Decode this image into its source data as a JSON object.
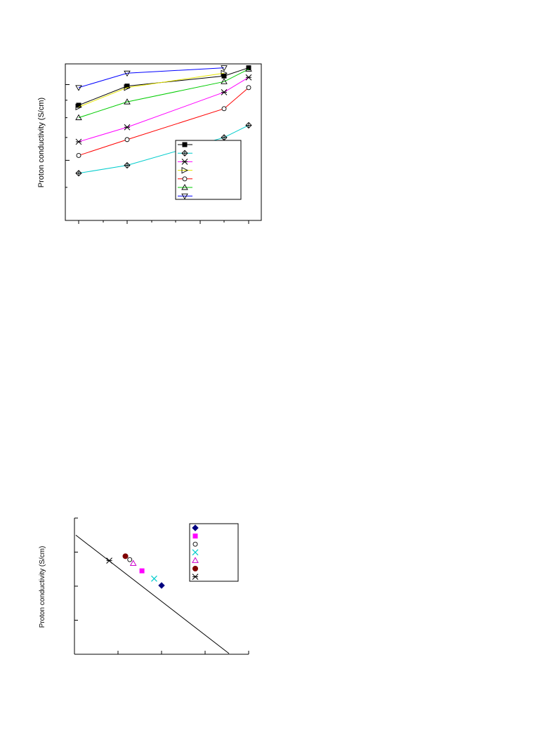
{
  "chart_data": [
    {
      "type": "line",
      "ylabel": "Proton conductivity (S/cm)",
      "xlabel": "",
      "title": "",
      "y_scale": "log",
      "ylim": [
        0.4,
        1.15
      ],
      "grid": false,
      "legend_placement": "lower-right",
      "x": [
        1,
        2,
        3,
        4,
        5
      ],
      "series": [
        {
          "color": "#000000",
          "marker": "filled-square",
          "values": [
            0.87,
            0.99,
            null,
            1.06,
            1.12
          ]
        },
        {
          "color": "#00cccc",
          "marker": "crossed-diamond",
          "values": [
            0.55,
            0.58,
            null,
            0.7,
            0.76
          ]
        },
        {
          "color": "#ff00ff",
          "marker": "asterisk",
          "values": [
            0.68,
            0.75,
            null,
            0.95,
            1.05
          ]
        },
        {
          "color": "#e6e600",
          "marker": "right-triangle",
          "values": [
            0.86,
            0.98,
            null,
            1.08,
            null
          ]
        },
        {
          "color": "#ff0000",
          "marker": "open-circle",
          "values": [
            0.62,
            0.69,
            null,
            0.85,
            0.98
          ]
        },
        {
          "color": "#00cc00",
          "marker": "up-triangle",
          "values": [
            0.8,
            0.89,
            null,
            1.02,
            1.11
          ]
        },
        {
          "color": "#0000ff",
          "marker": "down-triangle",
          "values": [
            0.98,
            1.08,
            null,
            1.12,
            null
          ]
        }
      ]
    },
    {
      "type": "scatter",
      "ylabel": "Proton conductivity (S/cm)",
      "xlabel": "",
      "title": "",
      "xlim": [
        0,
        4
      ],
      "ylim": [
        0,
        4
      ],
      "grid": false,
      "legend_placement": "top-right",
      "points": [
        {
          "color": "#000080",
          "marker": "filled-diamond",
          "x": 2.0,
          "y": 2.02
        },
        {
          "color": "#ff00ff",
          "marker": "filled-square",
          "x": 1.55,
          "y": 2.45
        },
        {
          "color": "#00cc00",
          "marker": "open-circle",
          "x": 1.27,
          "y": 2.78
        },
        {
          "color": "#00cccc",
          "marker": "x",
          "x": 1.83,
          "y": 2.22
        },
        {
          "color": "#cc00cc",
          "marker": "open-triangle",
          "x": 1.35,
          "y": 2.67
        },
        {
          "color": "#800000",
          "marker": "filled-circle",
          "x": 1.17,
          "y": 2.88
        },
        {
          "color": "#000000",
          "marker": "asterisk",
          "x": 0.8,
          "y": 2.75
        }
      ],
      "trendline": {
        "color": "#000000",
        "x": [
          0.03,
          3.55
        ],
        "y": [
          3.5,
          0.02
        ]
      }
    }
  ]
}
